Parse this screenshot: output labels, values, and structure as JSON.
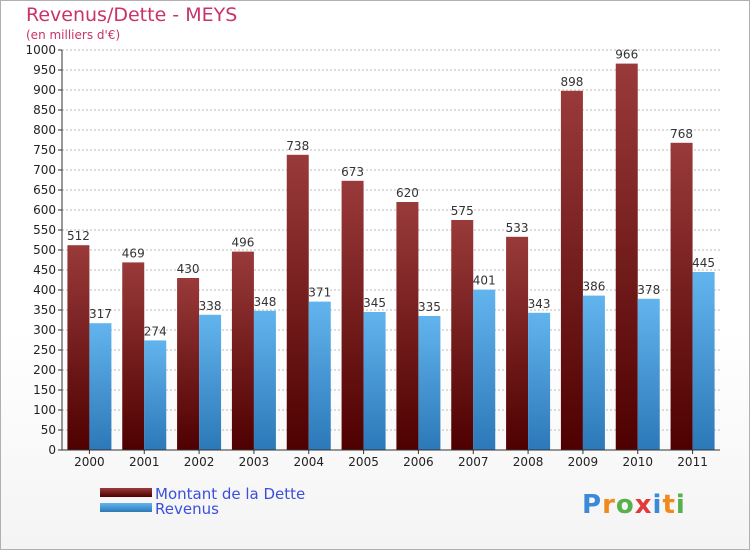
{
  "chart_data": {
    "type": "bar",
    "title": "Revenus/Dette - MEYS",
    "subtitle": "(en milliers d'€)",
    "xlabel": "",
    "ylabel": "",
    "ylim": [
      0,
      1000
    ],
    "ytick_step": 50,
    "grid": true,
    "legend_position": "bottom-left",
    "categories": [
      "2000",
      "2001",
      "2002",
      "2003",
      "2004",
      "2005",
      "2006",
      "2007",
      "2008",
      "2009",
      "2010",
      "2011"
    ],
    "series": [
      {
        "name": "Montant de la Dette",
        "color": "#7a1f1f",
        "values": [
          512,
          469,
          430,
          496,
          738,
          673,
          620,
          575,
          533,
          898,
          966,
          768
        ]
      },
      {
        "name": "Revenus",
        "color": "#4a9fe0",
        "values": [
          317,
          274,
          338,
          348,
          371,
          345,
          335,
          401,
          343,
          386,
          378,
          445
        ]
      }
    ]
  }
}
